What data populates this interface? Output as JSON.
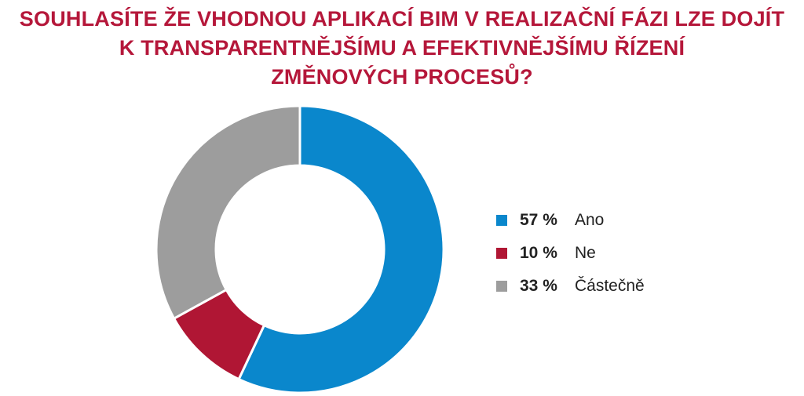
{
  "chart_data": {
    "type": "pie",
    "title_lines": [
      "SOUHLASÍTE  ŽE VHODNOU APLIKACÍ BIM V REALIZAČNÍ FÁZI LZE DOJÍT",
      "K TRANSPARENTNĚJŠÍMU A EFEKTIVNĚJŠÍMU ŘÍZENÍ",
      "ZMĚNOVÝCH PROCESŮ?"
    ],
    "slices": [
      {
        "label": "Ano",
        "value": 57,
        "value_label": "57 %",
        "color": "#0a87cc"
      },
      {
        "label": "Ne",
        "value": 10,
        "value_label": "10 %",
        "color": "#b01634"
      },
      {
        "label": "Částečně",
        "value": 33,
        "value_label": "33 %",
        "color": "#9d9d9d"
      }
    ],
    "donut": true,
    "legend_position": "right"
  }
}
